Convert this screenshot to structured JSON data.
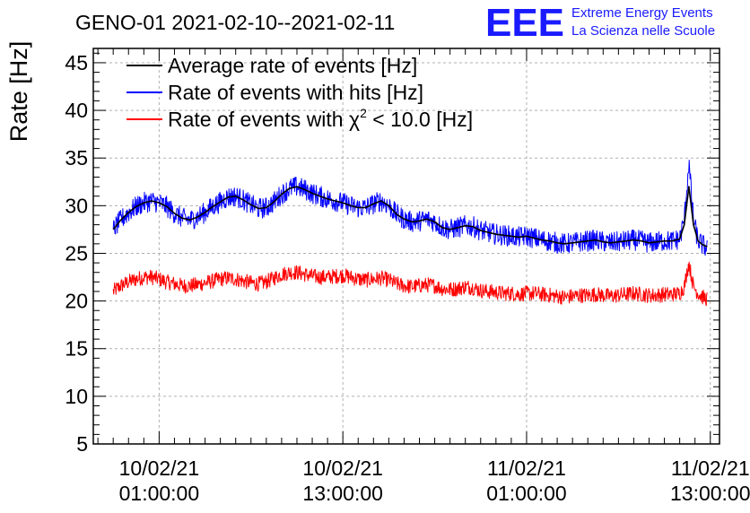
{
  "header": {
    "title": "GENO-01 2021-02-10--2021-02-11",
    "logo_text": "EEE",
    "logo_line1": "Extreme Energy Events",
    "logo_line2": "La Scienza nelle Scuole"
  },
  "colors": {
    "average": "#000000",
    "hits": "#0000ff",
    "chi2": "#ff0000",
    "logo": "#1a1aff",
    "grid": "#b0b0b0"
  },
  "chart_data": {
    "type": "line",
    "title": "GENO-01 2021-02-10--2021-02-11",
    "ylabel": "Rate [Hz]",
    "xlabel": "",
    "ylim": [
      5,
      46.5
    ],
    "xlim_hours": [
      -4.3,
      36.6
    ],
    "grid": true,
    "legend_position": "top-left",
    "yticks": [
      5,
      10,
      15,
      20,
      25,
      30,
      35,
      40,
      45
    ],
    "xticks": [
      {
        "hour": 0,
        "date": "10/02/21",
        "time": "01:00:00"
      },
      {
        "hour": 12,
        "date": "10/02/21",
        "time": "13:00:00"
      },
      {
        "hour": 24,
        "date": "11/02/21",
        "time": "01:00:00"
      },
      {
        "hour": 36,
        "date": "11/02/21",
        "time": "13:00:00"
      }
    ],
    "legend": [
      {
        "key": "average",
        "label_main": "Average rate of events [Hz]",
        "label_suffix": ""
      },
      {
        "key": "hits",
        "label_main": "Rate of events with hits [Hz]",
        "label_suffix": ""
      },
      {
        "key": "chi2",
        "label_main": "Rate of events with χ",
        "label_sup": "2",
        "label_suffix": " < 10.0 [Hz]"
      }
    ],
    "series": [
      {
        "name": "Average rate of events [Hz]",
        "key": "average",
        "hours": [
          -3.0,
          -2.5,
          -2.0,
          -1.5,
          -1.0,
          -0.5,
          0.0,
          0.5,
          1.0,
          1.5,
          2.0,
          2.5,
          3.0,
          3.5,
          4.0,
          4.5,
          5.0,
          5.5,
          6.0,
          6.5,
          7.0,
          7.5,
          8.0,
          8.5,
          9.0,
          9.5,
          10.0,
          10.5,
          11.0,
          11.5,
          12.0,
          12.5,
          13.0,
          13.5,
          14.0,
          14.5,
          15.0,
          15.5,
          16.0,
          16.5,
          17.0,
          17.5,
          18.0,
          18.5,
          19.0,
          19.5,
          20.0,
          20.5,
          21.0,
          21.5,
          22.0,
          22.5,
          23.0,
          23.5,
          24.0,
          24.5,
          25.0,
          25.5,
          26.0,
          26.5,
          27.0,
          27.5,
          28.0,
          28.5,
          29.0,
          29.5,
          30.0,
          30.5,
          31.0,
          31.5,
          32.0,
          32.5,
          33.0,
          33.5,
          34.0,
          34.3,
          34.6,
          34.9,
          35.2,
          35.5,
          35.8
        ],
        "values": [
          27.5,
          28.5,
          29.3,
          29.9,
          30.3,
          30.5,
          30.3,
          29.9,
          29.2,
          28.7,
          28.5,
          28.8,
          29.3,
          29.9,
          30.4,
          30.9,
          31.0,
          30.6,
          30.1,
          29.7,
          29.8,
          30.4,
          31.2,
          31.8,
          32.0,
          31.7,
          31.3,
          31.0,
          30.7,
          30.5,
          30.3,
          30.0,
          29.8,
          29.8,
          30.2,
          30.5,
          30.0,
          29.1,
          28.6,
          28.3,
          28.4,
          28.6,
          28.3,
          27.7,
          27.5,
          27.7,
          27.9,
          27.8,
          27.4,
          27.2,
          27.0,
          26.9,
          26.8,
          26.7,
          26.8,
          26.6,
          26.4,
          26.3,
          26.1,
          26.0,
          26.1,
          26.2,
          26.3,
          26.4,
          26.2,
          26.1,
          26.2,
          26.3,
          26.4,
          26.3,
          26.1,
          26.2,
          26.3,
          26.3,
          26.5,
          28.0,
          32.0,
          28.0,
          26.3,
          25.9,
          25.7
        ],
        "noise": 0.0
      },
      {
        "name": "Rate of events with hits [Hz]",
        "key": "hits",
        "hours": [
          -3.0,
          -2.5,
          -2.0,
          -1.5,
          -1.0,
          -0.5,
          0.0,
          0.5,
          1.0,
          1.5,
          2.0,
          2.5,
          3.0,
          3.5,
          4.0,
          4.5,
          5.0,
          5.5,
          6.0,
          6.5,
          7.0,
          7.5,
          8.0,
          8.5,
          9.0,
          9.5,
          10.0,
          10.5,
          11.0,
          11.5,
          12.0,
          12.5,
          13.0,
          13.5,
          14.0,
          14.5,
          15.0,
          15.5,
          16.0,
          16.5,
          17.0,
          17.5,
          18.0,
          18.5,
          19.0,
          19.5,
          20.0,
          20.5,
          21.0,
          21.5,
          22.0,
          22.5,
          23.0,
          23.5,
          24.0,
          24.5,
          25.0,
          25.5,
          26.0,
          26.5,
          27.0,
          27.5,
          28.0,
          28.5,
          29.0,
          29.5,
          30.0,
          30.5,
          31.0,
          31.5,
          32.0,
          32.5,
          33.0,
          33.5,
          34.0,
          34.3,
          34.6,
          34.9,
          35.2,
          35.5,
          35.8
        ],
        "values": [
          27.5,
          28.5,
          29.3,
          29.9,
          30.3,
          30.5,
          30.3,
          29.9,
          29.2,
          28.7,
          28.5,
          28.8,
          29.3,
          29.9,
          30.4,
          30.9,
          31.0,
          30.6,
          30.1,
          29.7,
          29.8,
          30.4,
          31.2,
          31.8,
          32.0,
          31.7,
          31.3,
          31.0,
          30.7,
          30.5,
          30.3,
          30.0,
          29.8,
          29.8,
          30.2,
          30.5,
          30.0,
          29.1,
          28.6,
          28.3,
          28.4,
          28.6,
          28.3,
          27.7,
          27.5,
          27.7,
          27.9,
          27.8,
          27.4,
          27.2,
          27.0,
          26.9,
          26.8,
          26.7,
          26.8,
          26.6,
          26.4,
          26.3,
          26.1,
          26.0,
          26.1,
          26.2,
          26.3,
          26.4,
          26.2,
          26.1,
          26.2,
          26.3,
          26.4,
          26.3,
          26.1,
          26.2,
          26.3,
          26.3,
          26.5,
          28.5,
          34.5,
          28.5,
          26.3,
          25.9,
          25.5
        ],
        "noise": 1.1
      },
      {
        "name": "Rate of events with χ2 < 10.0 [Hz]",
        "key": "chi2",
        "hours": [
          -3.0,
          -2.5,
          -2.0,
          -1.5,
          -1.0,
          -0.5,
          0.0,
          0.5,
          1.0,
          1.5,
          2.0,
          2.5,
          3.0,
          3.5,
          4.0,
          4.5,
          5.0,
          5.5,
          6.0,
          6.5,
          7.0,
          7.5,
          8.0,
          8.5,
          9.0,
          9.5,
          10.0,
          10.5,
          11.0,
          11.5,
          12.0,
          12.5,
          13.0,
          13.5,
          14.0,
          14.5,
          15.0,
          15.5,
          16.0,
          16.5,
          17.0,
          17.5,
          18.0,
          18.5,
          19.0,
          19.5,
          20.0,
          20.5,
          21.0,
          21.5,
          22.0,
          22.5,
          23.0,
          23.5,
          24.0,
          24.5,
          25.0,
          25.5,
          26.0,
          26.5,
          27.0,
          27.5,
          28.0,
          28.5,
          29.0,
          29.5,
          30.0,
          30.5,
          31.0,
          31.5,
          32.0,
          32.5,
          33.0,
          33.5,
          34.0,
          34.3,
          34.6,
          34.9,
          35.2,
          35.5,
          35.8
        ],
        "values": [
          21.0,
          21.6,
          22.0,
          22.3,
          22.5,
          22.5,
          22.3,
          22.0,
          21.8,
          21.6,
          21.6,
          21.7,
          21.9,
          22.1,
          22.3,
          22.4,
          22.3,
          22.1,
          21.9,
          21.8,
          22.0,
          22.4,
          22.8,
          23.0,
          23.0,
          22.8,
          22.6,
          22.5,
          22.5,
          22.6,
          22.7,
          22.5,
          22.3,
          22.2,
          22.3,
          22.4,
          22.2,
          21.8,
          21.6,
          21.5,
          21.6,
          21.7,
          21.6,
          21.3,
          21.2,
          21.3,
          21.5,
          21.4,
          21.1,
          21.0,
          20.9,
          20.8,
          20.8,
          20.7,
          20.8,
          20.8,
          20.7,
          20.6,
          20.5,
          20.4,
          20.5,
          20.6,
          20.6,
          20.7,
          20.6,
          20.5,
          20.6,
          20.7,
          20.8,
          20.7,
          20.6,
          20.6,
          20.7,
          20.7,
          20.8,
          21.5,
          24.0,
          21.5,
          20.8,
          20.4,
          20.2
        ],
        "noise": 0.8
      }
    ]
  }
}
